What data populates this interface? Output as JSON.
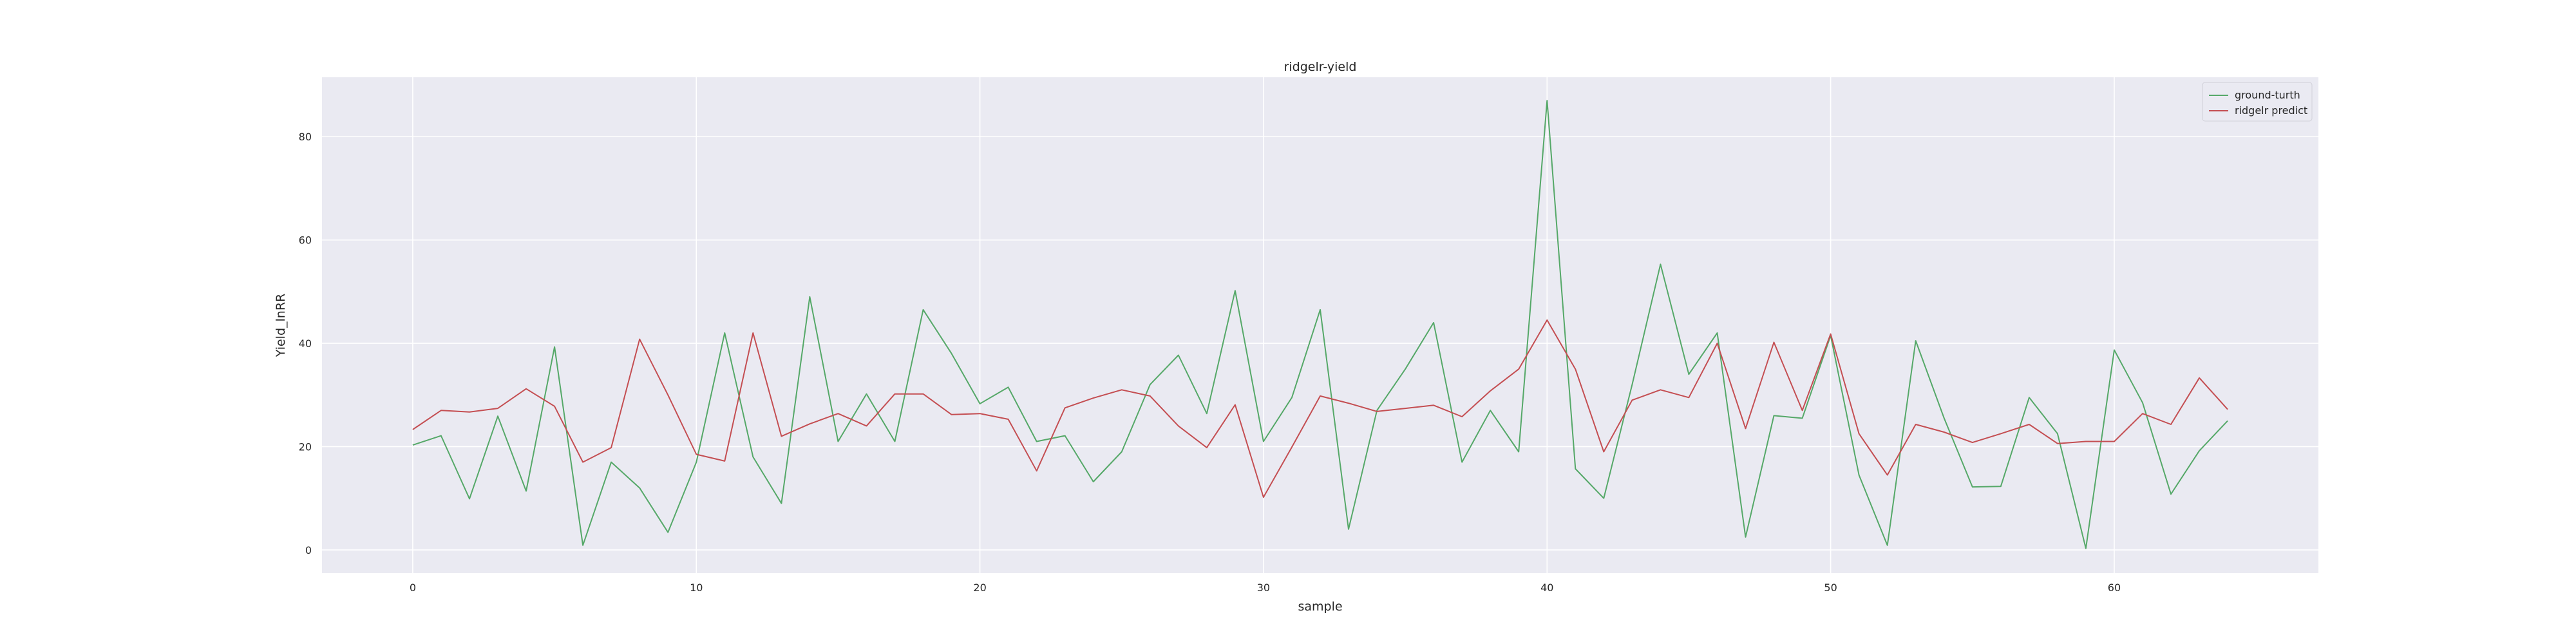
{
  "chart_data": {
    "type": "line",
    "title": "ridgelr-yield",
    "xlabel": "sample",
    "ylabel": "Yield_lnRR",
    "xlim": [
      -3.2,
      67.2
    ],
    "ylim": [
      -4.5,
      91.5
    ],
    "xticks": [
      0,
      10,
      20,
      30,
      40,
      50,
      60
    ],
    "yticks": [
      0,
      20,
      40,
      60,
      80
    ],
    "grid": true,
    "legend": "top-right",
    "series": [
      {
        "name": "ground-turth",
        "color": "#55a868",
        "values": [
          20.3,
          22.1,
          9.9,
          25.9,
          11.4,
          39.3,
          0.9,
          17.0,
          12.0,
          3.4,
          17.0,
          42.0,
          18.0,
          9.0,
          49.0,
          21.0,
          30.2,
          21.0,
          46.5,
          38.0,
          28.3,
          31.5,
          21.0,
          22.1,
          13.2,
          19.0,
          32.0,
          37.7,
          26.4,
          50.2,
          21.0,
          29.5,
          46.5,
          4.0,
          27.0,
          35.0,
          44.0,
          17.0,
          27.0,
          19.0,
          87.0,
          15.7,
          10.0,
          32.0,
          55.3,
          34.0,
          42.0,
          2.5,
          26.0,
          25.5,
          41.5,
          14.5,
          0.9,
          40.5,
          25.5,
          12.2,
          12.3,
          29.5,
          22.5,
          0.3,
          38.7,
          28.5,
          10.8,
          19.2,
          25.0
        ]
      },
      {
        "name": "ridgelr predict",
        "color": "#c44e52",
        "values": [
          23.3,
          27.0,
          26.7,
          27.4,
          31.2,
          27.8,
          17.0,
          19.8,
          40.8,
          30.0,
          18.5,
          17.2,
          42.0,
          22.0,
          24.4,
          26.4,
          24.0,
          30.2,
          30.2,
          26.2,
          26.4,
          25.3,
          15.3,
          27.5,
          29.4,
          31.0,
          29.8,
          24.0,
          19.8,
          28.1,
          10.2,
          19.9,
          29.8,
          28.4,
          26.8,
          27.4,
          28.0,
          25.8,
          30.8,
          35.0,
          44.5,
          35.0,
          19.0,
          29.0,
          31.0,
          29.5,
          40.0,
          23.5,
          40.2,
          27.0,
          41.8,
          22.5,
          14.5,
          24.3,
          22.8,
          20.8,
          22.5,
          24.3,
          20.6,
          21.0,
          21.0,
          26.4,
          24.3,
          33.3,
          27.2
        ]
      }
    ]
  }
}
